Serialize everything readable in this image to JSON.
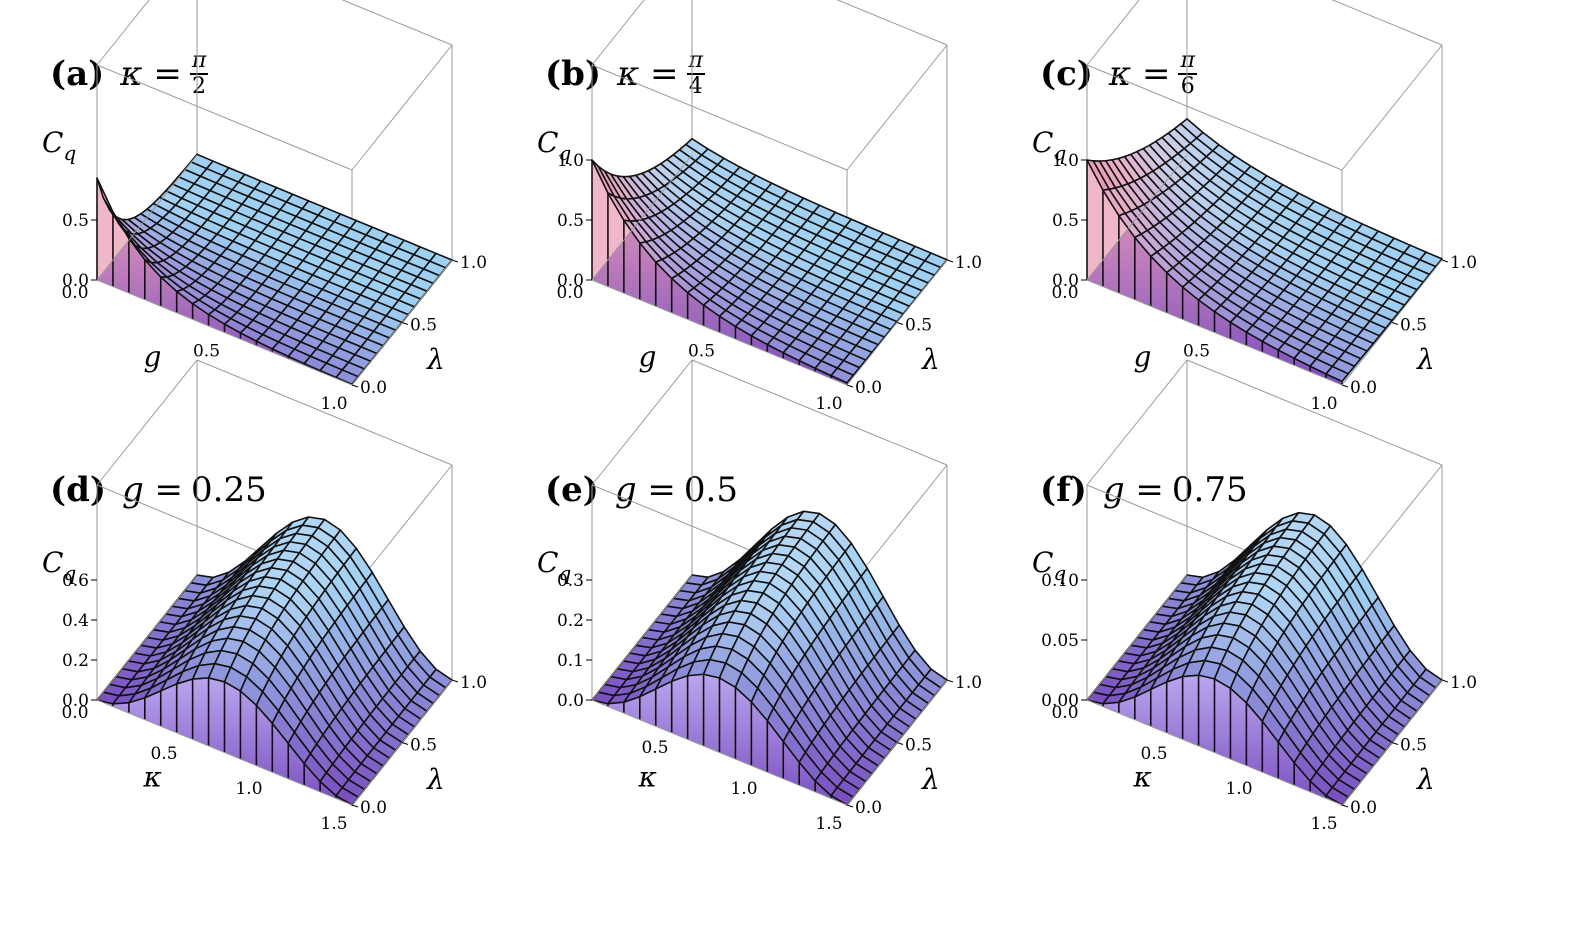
{
  "chart_data": [
    {
      "type": "surface",
      "panel": "a",
      "title_tag": "(a)",
      "title_var": "κ",
      "title_eq": " = ",
      "title_value_num": "π",
      "title_value_den": "2",
      "title_value": "",
      "xvar": "g",
      "yvar": "λ",
      "zvar": "C",
      "zsub": "q",
      "xticks": [
        "0.0",
        "0.5",
        "1.0"
      ],
      "yticks": [
        "0.0",
        "0.5",
        "1.0"
      ],
      "zticks": [
        "0.0",
        "0.5"
      ],
      "zlim": [
        0,
        1
      ],
      "x_range": [
        0,
        1
      ],
      "y_range": [
        0,
        1
      ],
      "peak": 0.85,
      "decay_x": 5.0,
      "decay_y": 5.0,
      "mode": "corner"
    },
    {
      "type": "surface",
      "panel": "b",
      "title_tag": "(b)",
      "title_var": "κ",
      "title_eq": " = ",
      "title_value_num": "π",
      "title_value_den": "4",
      "title_value": "",
      "xvar": "g",
      "yvar": "λ",
      "zvar": "C",
      "zsub": "q",
      "xticks": [
        "0.0",
        "0.5",
        "1.0"
      ],
      "yticks": [
        "0.0",
        "0.5",
        "1.0"
      ],
      "zticks": [
        "0.0",
        "0.5",
        "1.0"
      ],
      "zlim": [
        0,
        1
      ],
      "x_range": [
        0,
        1
      ],
      "y_range": [
        0,
        1
      ],
      "peak": 1.0,
      "decay_x": 4.0,
      "decay_y": 2.0,
      "mode": "corner"
    },
    {
      "type": "surface",
      "panel": "c",
      "title_tag": "(c)",
      "title_var": "κ",
      "title_eq": " = ",
      "title_value_num": "π",
      "title_value_den": "6",
      "title_value": "",
      "xvar": "g",
      "yvar": "λ",
      "zvar": "C",
      "zsub": "q",
      "xticks": [
        "0.0",
        "0.5",
        "1.0"
      ],
      "yticks": [
        "0.0",
        "0.5",
        "1.0"
      ],
      "zticks": [
        "0.0",
        "0.5",
        "1.0"
      ],
      "zlim": [
        0,
        1
      ],
      "x_range": [
        0,
        1
      ],
      "y_range": [
        0,
        1
      ],
      "peak": 1.0,
      "decay_x": 3.5,
      "decay_y": 1.2,
      "mode": "corner"
    },
    {
      "type": "surface",
      "panel": "d",
      "title_tag": "(d)",
      "title_var": "g",
      "title_eq": " = ",
      "title_value_num": "",
      "title_value_den": "",
      "title_value": "0.25",
      "xvar": "κ",
      "yvar": "λ",
      "zvar": "C",
      "zsub": "q",
      "xticks": [
        "0.0",
        "0.5",
        "1.0",
        "1.5"
      ],
      "yticks": [
        "0.0",
        "0.5",
        "1.0"
      ],
      "zticks": [
        "0.0",
        "0.2",
        "0.4",
        "0.6"
      ],
      "zlim": [
        0,
        0.6
      ],
      "x_range": [
        0,
        1.5708
      ],
      "y_range": [
        0,
        1
      ],
      "peak": 0.55,
      "decay_y": 3.0,
      "mode": "sine"
    },
    {
      "type": "surface",
      "panel": "e",
      "title_tag": "(e)",
      "title_var": "g",
      "title_eq": " = ",
      "title_value_num": "",
      "title_value_den": "",
      "title_value": "0.5",
      "xvar": "κ",
      "yvar": "λ",
      "zvar": "C",
      "zsub": "q",
      "xticks": [
        "0.5",
        "1.0",
        "1.5"
      ],
      "yticks": [
        "0.0",
        "0.5",
        "1.0"
      ],
      "zticks": [
        "0.0",
        "0.1",
        "0.2",
        "0.3"
      ],
      "zlim": [
        0,
        0.3
      ],
      "x_range": [
        0,
        1.5708
      ],
      "y_range": [
        0,
        1
      ],
      "peak": 0.29,
      "decay_y": 3.0,
      "mode": "sine"
    },
    {
      "type": "surface",
      "panel": "f",
      "title_tag": "(f)",
      "title_var": "g",
      "title_eq": " = ",
      "title_value_num": "",
      "title_value_den": "",
      "title_value": "0.75",
      "xvar": "κ",
      "yvar": "λ",
      "zvar": "C",
      "zsub": "q",
      "xticks": [
        "0.0",
        "0.5",
        "1.0",
        "1.5"
      ],
      "yticks": [
        "0.0",
        "0.5",
        "1.0"
      ],
      "zticks": [
        "0.00",
        "0.05",
        "0.10"
      ],
      "zlim": [
        0,
        0.11
      ],
      "x_range": [
        0,
        1.5708
      ],
      "y_range": [
        0,
        1
      ],
      "peak": 0.105,
      "decay_y": 3.0,
      "mode": "sine"
    }
  ],
  "colors": {
    "surface_high": "#f4a3b6",
    "surface_mid": "#efe8fb",
    "surface_low_dark": "#7a4ec0",
    "surface_low_light": "#9fd0f2",
    "mesh": "#111111",
    "box": "#9a9a9a"
  }
}
